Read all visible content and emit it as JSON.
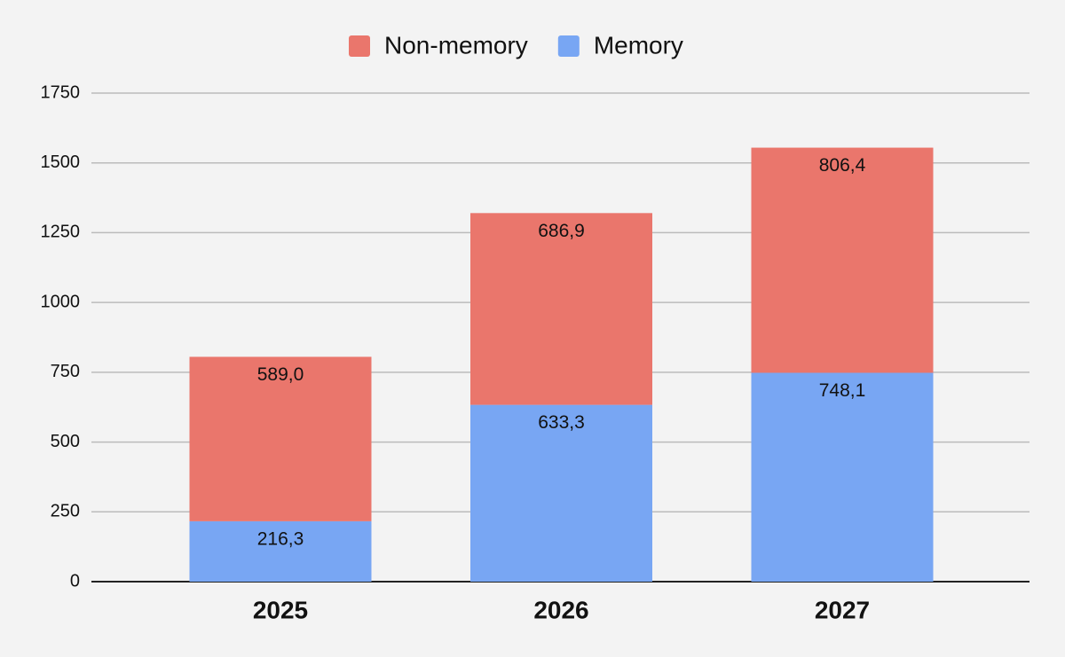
{
  "chart_data": {
    "type": "stacked_bar",
    "categories": [
      "2025",
      "2026",
      "2027"
    ],
    "series": [
      {
        "name": "Memory",
        "color": "#78a6f3",
        "values": [
          216.3,
          633.3,
          748.1
        ],
        "value_labels": [
          "216,3",
          "633,3",
          "748,1"
        ]
      },
      {
        "name": "Non-memory",
        "color": "#ea766c",
        "values": [
          589.0,
          686.9,
          806.4
        ],
        "value_labels": [
          "589,0",
          "686,9",
          "806,4"
        ]
      }
    ],
    "ylim": [
      0,
      1750
    ],
    "yticks": [
      0,
      250,
      500,
      750,
      1000,
      1250,
      1500,
      1750
    ],
    "grid": true,
    "legend": "top"
  }
}
